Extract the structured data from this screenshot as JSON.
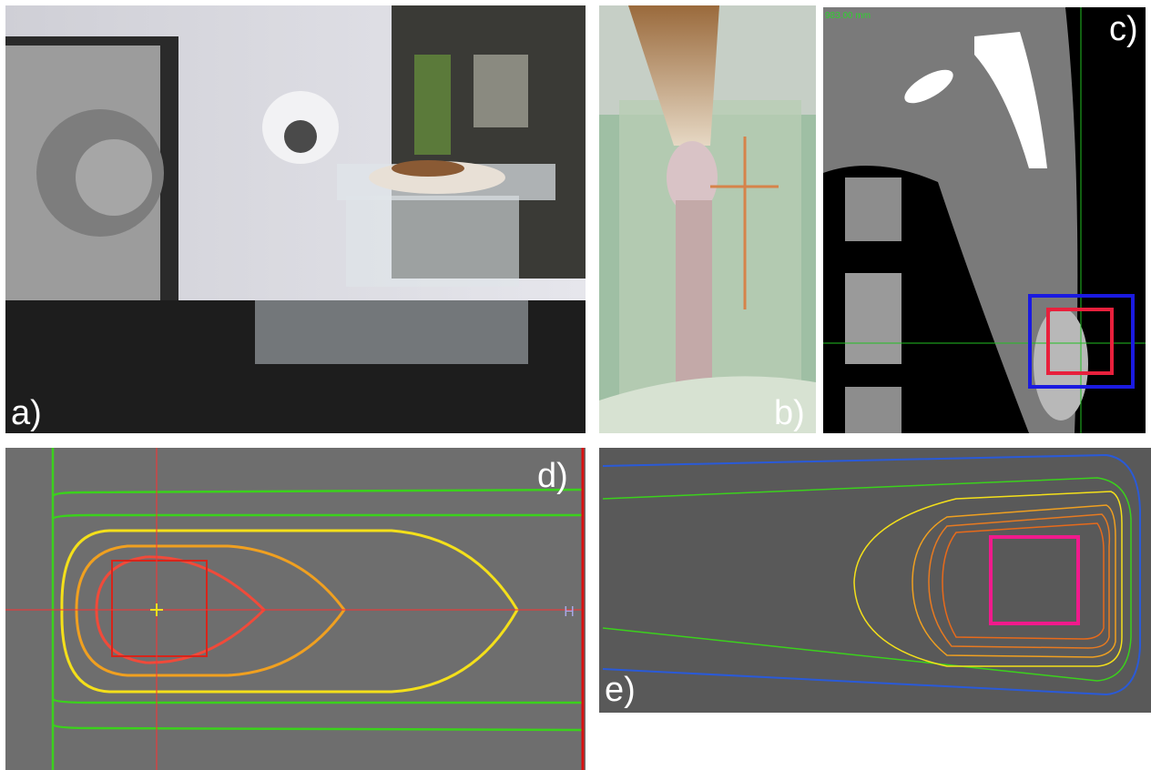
{
  "panels": [
    {
      "label": "a)"
    },
    {
      "label": "b)"
    },
    {
      "label": "c)"
    },
    {
      "label": "d)"
    },
    {
      "label": "e)"
    }
  ],
  "panel_c_readout": "983.00 mm",
  "panel_d_marker": "H"
}
